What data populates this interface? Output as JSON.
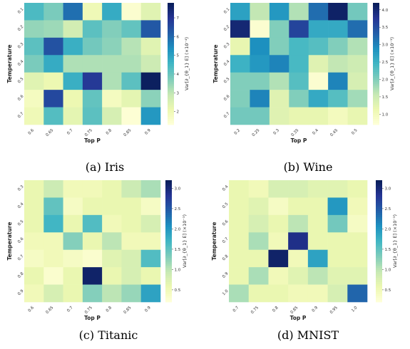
{
  "chart_data": [
    {
      "type": "heatmap",
      "caption": "(a) Iris",
      "xlabel": "Top P",
      "ylabel": "Temperature",
      "x_ticks": [
        "0.6",
        "0.65",
        "0.7",
        "0.75",
        "0.8",
        "0.85",
        "0.9"
      ],
      "y_ticks": [
        "0.1",
        "0.2",
        "0.3",
        "0.4",
        "0.5",
        "0.6",
        "0.7"
      ],
      "colorbar_label": "Var[∂_{θ_1} E] (×10⁻⁴)",
      "colorbar_ticks": [
        "2",
        "3",
        "4",
        "5",
        "6",
        "7"
      ],
      "vmin": 1.3,
      "vmax": 7.8,
      "values": [
        [
          4.4,
          3.8,
          5.9,
          2.0,
          4.8,
          1.5,
          2.4
        ],
        [
          3.5,
          3.4,
          2.7,
          4.2,
          3.7,
          4.1,
          6.3
        ],
        [
          4.2,
          6.4,
          4.7,
          3.9,
          3.6,
          3.1,
          2.4
        ],
        [
          3.8,
          4.8,
          3.2,
          3.2,
          3.2,
          3.2,
          2.8
        ],
        [
          2.4,
          2.1,
          4.7,
          6.9,
          3.2,
          4.2,
          7.7
        ],
        [
          1.8,
          6.6,
          2.1,
          4.1,
          1.8,
          2.3,
          3.6
        ],
        [
          2.0,
          4.3,
          2.3,
          4.2,
          2.6,
          1.4,
          5.2
        ]
      ]
    },
    {
      "type": "heatmap",
      "caption": "(b) Wine",
      "xlabel": "Top P",
      "ylabel": "Temperature",
      "x_ticks": [
        "0.2",
        "0.25",
        "0.3",
        "0.35",
        "0.4",
        "0.45",
        "0.5"
      ],
      "y_ticks": [
        "0.1",
        "0.2",
        "0.3",
        "0.4",
        "0.5",
        "0.6",
        "0.7"
      ],
      "colorbar_label": "Var[∂_{θ_1} E] (×10⁻³)",
      "colorbar_ticks": [
        "1.0",
        "1.5",
        "2.0",
        "2.5",
        "3.0",
        "3.5",
        "4.0"
      ],
      "vmin": 0.7,
      "vmax": 4.2,
      "values": [
        [
          2.7,
          1.6,
          2.8,
          1.7,
          3.2,
          4.1,
          2.1
        ],
        [
          4.0,
          0.8,
          2.0,
          3.6,
          2.6,
          2.6,
          3.2
        ],
        [
          1.2,
          2.9,
          2.0,
          2.4,
          2.3,
          2.0,
          1.7
        ],
        [
          2.5,
          2.8,
          3.0,
          2.4,
          1.3,
          1.6,
          1.5
        ],
        [
          2.0,
          2.0,
          1.7,
          2.3,
          0.8,
          3.0,
          1.4
        ],
        [
          2.0,
          3.0,
          1.3,
          2.0,
          2.6,
          2.3,
          1.8
        ],
        [
          2.1,
          2.1,
          1.3,
          1.2,
          1.2,
          1.0,
          1.2
        ]
      ]
    },
    {
      "type": "heatmap",
      "caption": "(c) Titanic",
      "xlabel": "Top P",
      "ylabel": "Temperature",
      "x_ticks": [
        "0.6",
        "0.65",
        "0.7",
        "0.75",
        "0.8",
        "0.85",
        "0.9"
      ],
      "y_ticks": [
        "0.3",
        "0.4",
        "0.5",
        "0.6",
        "0.7",
        "0.8",
        "0.9"
      ],
      "colorbar_label": "Var[∂_{θ_1} E] (×10⁻³)",
      "colorbar_ticks": [
        "0.5",
        "1.0",
        "1.5",
        "2.0",
        "2.5",
        "3.0"
      ],
      "vmin": 0.2,
      "vmax": 3.2,
      "values": [
        [
          0.6,
          0.9,
          0.5,
          0.5,
          0.6,
          0.9,
          1.1
        ],
        [
          0.6,
          1.5,
          0.4,
          0.6,
          0.6,
          0.6,
          0.4
        ],
        [
          0.6,
          1.7,
          0.6,
          1.6,
          0.5,
          0.6,
          0.8
        ],
        [
          0.5,
          0.5,
          1.3,
          0.6,
          1.0,
          0.5,
          0.5
        ],
        [
          0.4,
          0.5,
          0.4,
          0.3,
          0.7,
          0.8,
          1.6
        ],
        [
          0.6,
          0.3,
          0.6,
          3.1,
          0.6,
          0.8,
          0.6
        ],
        [
          0.5,
          0.8,
          0.6,
          1.3,
          1.0,
          1.2,
          1.9
        ]
      ]
    },
    {
      "type": "heatmap",
      "caption": "(d) MNIST",
      "xlabel": "Top P",
      "ylabel": "Temperature",
      "x_ticks": [
        "0.7",
        "0.75",
        "0.8",
        "0.85",
        "0.9",
        "0.95",
        "1.0"
      ],
      "y_ticks": [
        "0.4",
        "0.5",
        "0.6",
        "0.7",
        "0.8",
        "0.9",
        "1.0"
      ],
      "colorbar_label": "Var[∂_{θ_1} E] (×10⁻³)",
      "colorbar_ticks": [
        "0.5",
        "1.0",
        "1.5",
        "2.0",
        "2.5",
        "3.0"
      ],
      "vmin": 0.2,
      "vmax": 3.2,
      "values": [
        [
          0.6,
          0.5,
          0.8,
          0.8,
          0.7,
          0.7,
          0.6
        ],
        [
          0.6,
          0.7,
          0.4,
          0.6,
          0.6,
          2.0,
          0.5
        ],
        [
          0.6,
          0.8,
          0.6,
          1.0,
          0.6,
          1.4,
          0.4
        ],
        [
          0.6,
          1.1,
          0.5,
          2.9,
          0.6,
          0.6,
          0.6
        ],
        [
          0.6,
          0.6,
          3.1,
          0.5,
          1.9,
          0.6,
          0.6
        ],
        [
          0.6,
          1.1,
          0.5,
          0.7,
          1.0,
          0.7,
          0.7
        ],
        [
          1.1,
          0.6,
          0.6,
          0.5,
          0.5,
          0.8,
          2.4
        ]
      ]
    }
  ]
}
